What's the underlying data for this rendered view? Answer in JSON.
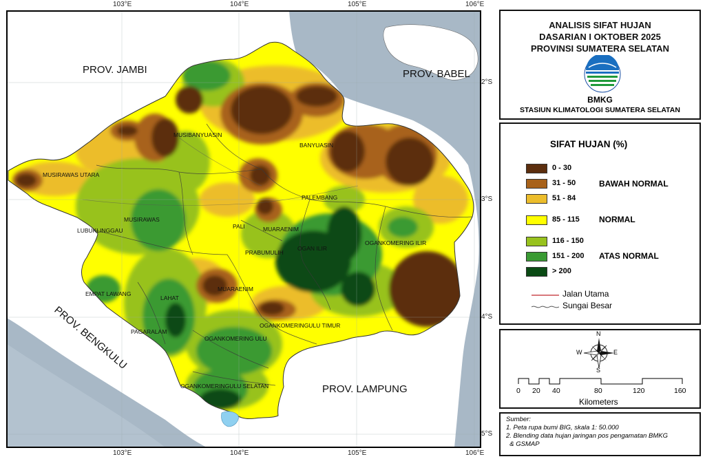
{
  "map": {
    "region_labels": {
      "jambi": "PROV. JAMBI",
      "babel": "PROV. BABEL",
      "bengkulu": "PROV. BENGKULU",
      "lampung": "PROV. LAMPUNG"
    },
    "district_labels": [
      "MUSIBANYUASIN",
      "BANYUASIN",
      "MUSIRAWAS UTARA",
      "PALEMBANG",
      "MUSIRAWAS",
      "LUBUKLINGGAU",
      "PALI",
      "MUARAENIM",
      "OGAN ILIR",
      "PRABUMULIH",
      "OGANKOMERING ILIR",
      "EMPAT LAWANG",
      "LAHAT",
      "MUARAENIM",
      "OGANKOMERINGULU TIMUR",
      "PAGARALAM",
      "OGANKOMERING ULU",
      "OGANKOMERINGULU SELATAN"
    ],
    "longitude_ticks": [
      "103°E",
      "104°E",
      "105°E",
      "106°E"
    ],
    "latitude_ticks": [
      "2°S",
      "3°S",
      "4°S",
      "5°S"
    ]
  },
  "title": {
    "line1": "ANALISIS SIFAT HUJAN",
    "line2": "DASARIAN I OKTOBER 2025",
    "line3": "PROVINSI SUMATERA SELATAN",
    "logo_text": "BMKG",
    "station": "STASIUN KLIMATOLOGI SUMATERA SELATAN"
  },
  "legend": {
    "title": "SIFAT HUJAN (%)",
    "classes": [
      {
        "label": "0 - 30",
        "color": "#5c2e0e"
      },
      {
        "label": "31 - 50",
        "color": "#a8621a"
      },
      {
        "label": "51 - 84",
        "color": "#ecbd2c"
      },
      {
        "label": "85 - 115",
        "color": "#ffff00"
      },
      {
        "label": "116 - 150",
        "color": "#98c21e"
      },
      {
        "label": "151 - 200",
        "color": "#3a9a33"
      },
      {
        "label": "> 200",
        "color": "#0a4a14"
      }
    ],
    "groups": {
      "below": "BAWAH NORMAL",
      "normal": "NORMAL",
      "above": "ATAS NORMAL"
    },
    "lines": {
      "road": "Jalan Utama",
      "river": "Sungai Besar"
    }
  },
  "scale": {
    "ticks": [
      "0",
      "20",
      "40",
      "80",
      "120",
      "160"
    ],
    "unit": "Kilometers",
    "compass": {
      "n": "N",
      "s": "S",
      "e": "E",
      "w": "W"
    }
  },
  "source": {
    "heading": "Sumber:",
    "line1": "1. Peta rupa bumi BIG, skala 1: 50.000",
    "line2": "2. Blending data hujan jaringan pos pengamatan BMKG",
    "line3": "  & GSMAP"
  }
}
